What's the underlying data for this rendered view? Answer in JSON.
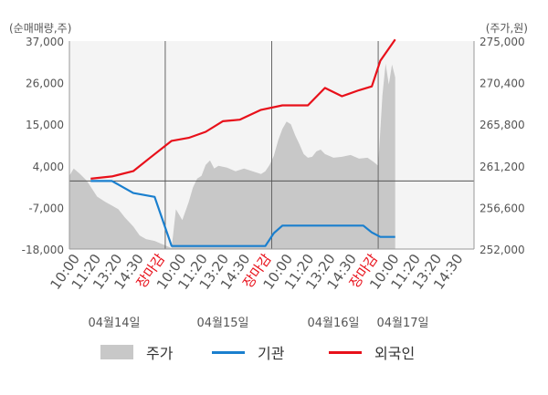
{
  "chart_data": {
    "type": "line",
    "left_axis_unit": "(순매매량,주)",
    "right_axis_unit": "(주가,원)",
    "left_ticks": [
      "37,000",
      "26,000",
      "15,000",
      "4,000",
      "-7,000",
      "-18,000"
    ],
    "right_ticks": [
      "275,000",
      "270,400",
      "265,800",
      "261,200",
      "256,600",
      "252,000"
    ],
    "left_range": [
      -18000,
      37000
    ],
    "right_range": [
      252000,
      275000
    ],
    "x_labels": [
      "10:00",
      "11:20",
      "13:20",
      "14:30",
      "장마감",
      "10:00",
      "11:20",
      "13:20",
      "14:30",
      "장마감",
      "10:00",
      "11:20",
      "13:20",
      "14:30",
      "장마감",
      "10:00",
      "11:20",
      "13:20",
      "14:30"
    ],
    "x_label_highlight": [
      false,
      false,
      false,
      false,
      true,
      false,
      false,
      false,
      false,
      true,
      false,
      false,
      false,
      false,
      true,
      false,
      false,
      false,
      false
    ],
    "dates": [
      "04월14일",
      "04월15일",
      "04월16일",
      "04월17일"
    ],
    "legend": [
      {
        "label": "주가",
        "color": "#c8c8c8"
      },
      {
        "label": "기관",
        "color": "#1a7fce"
      },
      {
        "label": "외국인",
        "color": "#e8101a"
      }
    ],
    "series": [
      {
        "name": "기관",
        "color": "#1a7fce",
        "points": [
          [
            1.0,
            0
          ],
          [
            2.0,
            0
          ],
          [
            3.0,
            -3200
          ],
          [
            4.0,
            -4200
          ],
          [
            4.8,
            -17200
          ],
          [
            5.0,
            -17200
          ],
          [
            9.2,
            -17200
          ],
          [
            9.6,
            -13800
          ],
          [
            10.0,
            -11800
          ],
          [
            13.8,
            -11800
          ],
          [
            14.2,
            -13600
          ],
          [
            14.6,
            -14800
          ],
          [
            15.0,
            -14800
          ],
          [
            15.3,
            -14800
          ]
        ]
      },
      {
        "name": "외국인",
        "color": "#e8101a",
        "points": [
          [
            1.0,
            600
          ],
          [
            2.0,
            1200
          ],
          [
            3.0,
            2600
          ],
          [
            3.8,
            6200
          ],
          [
            4.8,
            10600
          ],
          [
            5.6,
            11400
          ],
          [
            6.4,
            13000
          ],
          [
            7.2,
            15800
          ],
          [
            8.0,
            16200
          ],
          [
            9.0,
            18800
          ],
          [
            10.0,
            20000
          ],
          [
            11.2,
            20000
          ],
          [
            12.0,
            24600
          ],
          [
            12.8,
            22400
          ],
          [
            13.6,
            24000
          ],
          [
            14.2,
            25000
          ],
          [
            14.6,
            31800
          ],
          [
            15.3,
            37400
          ]
        ]
      },
      {
        "name": "주가",
        "color": "#c8c8c8",
        "points": [
          [
            0.0,
            260100
          ],
          [
            0.2,
            260900
          ],
          [
            0.5,
            260300
          ],
          [
            0.8,
            259600
          ],
          [
            1.0,
            258900
          ],
          [
            1.3,
            257800
          ],
          [
            1.7,
            257200
          ],
          [
            2.0,
            256800
          ],
          [
            2.3,
            256400
          ],
          [
            2.6,
            255500
          ],
          [
            3.0,
            254500
          ],
          [
            3.3,
            253500
          ],
          [
            3.6,
            253100
          ],
          [
            4.0,
            252900
          ],
          [
            4.3,
            252600
          ],
          [
            4.6,
            252300
          ],
          [
            4.8,
            252100
          ],
          [
            5.0,
            256400
          ],
          [
            5.3,
            255200
          ],
          [
            5.6,
            257200
          ],
          [
            5.8,
            258800
          ],
          [
            6.0,
            259800
          ],
          [
            6.2,
            260100
          ],
          [
            6.4,
            261300
          ],
          [
            6.6,
            261800
          ],
          [
            6.8,
            260900
          ],
          [
            7.0,
            261200
          ],
          [
            7.4,
            261000
          ],
          [
            7.8,
            260600
          ],
          [
            8.2,
            260900
          ],
          [
            8.6,
            260600
          ],
          [
            9.0,
            260300
          ],
          [
            9.2,
            260600
          ],
          [
            9.4,
            261300
          ],
          [
            9.6,
            262300
          ],
          [
            9.8,
            264000
          ],
          [
            10.0,
            265300
          ],
          [
            10.2,
            266100
          ],
          [
            10.4,
            265800
          ],
          [
            10.6,
            264600
          ],
          [
            10.8,
            263600
          ],
          [
            11.0,
            262500
          ],
          [
            11.2,
            262100
          ],
          [
            11.4,
            262200
          ],
          [
            11.6,
            262800
          ],
          [
            11.8,
            263000
          ],
          [
            12.0,
            262500
          ],
          [
            12.4,
            262100
          ],
          [
            12.8,
            262200
          ],
          [
            13.2,
            262400
          ],
          [
            13.6,
            262000
          ],
          [
            14.0,
            262100
          ],
          [
            14.3,
            261600
          ],
          [
            14.5,
            261200
          ],
          [
            14.7,
            269000
          ],
          [
            14.85,
            272500
          ],
          [
            15.0,
            270200
          ],
          [
            15.15,
            272400
          ],
          [
            15.3,
            271000
          ]
        ]
      }
    ]
  }
}
